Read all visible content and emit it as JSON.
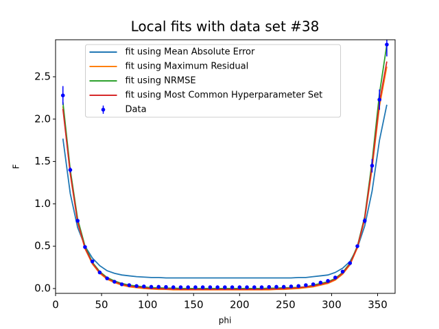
{
  "chart_data": {
    "type": "line",
    "title": "Local fits with data set #38",
    "x_label": "phi",
    "y_label": "F",
    "x": [
      8,
      16,
      24,
      32,
      40,
      48,
      56,
      64,
      72,
      80,
      88,
      96,
      104,
      112,
      120,
      128,
      136,
      144,
      152,
      160,
      168,
      176,
      184,
      192,
      200,
      208,
      216,
      224,
      232,
      240,
      248,
      256,
      264,
      272,
      280,
      288,
      296,
      304,
      312,
      320,
      328,
      336,
      344,
      352,
      360
    ],
    "series": [
      {
        "name": "fit using Mean Absolute Error",
        "color": "#1f77b4",
        "values": [
          1.77,
          1.12,
          0.72,
          0.5,
          0.36,
          0.27,
          0.21,
          0.18,
          0.16,
          0.15,
          0.14,
          0.135,
          0.13,
          0.13,
          0.125,
          0.125,
          0.125,
          0.125,
          0.125,
          0.125,
          0.125,
          0.125,
          0.125,
          0.125,
          0.125,
          0.125,
          0.125,
          0.125,
          0.125,
          0.125,
          0.125,
          0.125,
          0.13,
          0.13,
          0.14,
          0.15,
          0.16,
          0.19,
          0.24,
          0.32,
          0.48,
          0.74,
          1.15,
          1.75,
          2.17
        ]
      },
      {
        "name": "fit using Maximum Residual",
        "color": "#ff7f0e",
        "values": [
          2.15,
          1.35,
          0.78,
          0.47,
          0.29,
          0.18,
          0.11,
          0.07,
          0.04,
          0.02,
          0.01,
          0,
          -0.005,
          -0.01,
          -0.01,
          -0.015,
          -0.015,
          -0.015,
          -0.015,
          -0.015,
          -0.015,
          -0.015,
          -0.015,
          -0.015,
          -0.015,
          -0.015,
          -0.015,
          -0.015,
          -0.015,
          -0.01,
          -0.01,
          -0.005,
          0,
          0.01,
          0.02,
          0.04,
          0.06,
          0.1,
          0.17,
          0.28,
          0.48,
          0.82,
          1.42,
          2.15,
          2.62
        ]
      },
      {
        "name": "fit using NRMSE",
        "color": "#2ca02c",
        "values": [
          2.2,
          1.4,
          0.82,
          0.5,
          0.31,
          0.2,
          0.13,
          0.09,
          0.06,
          0.04,
          0.03,
          0.02,
          0.01,
          0.01,
          0.005,
          0.005,
          0,
          0,
          0,
          0,
          0,
          0,
          0,
          0,
          0,
          0,
          0,
          0,
          0.005,
          0.005,
          0.01,
          0.01,
          0.015,
          0.02,
          0.04,
          0.06,
          0.08,
          0.12,
          0.19,
          0.3,
          0.5,
          0.85,
          1.5,
          2.3,
          2.88
        ]
      },
      {
        "name": "fit using Most Common Hyperparameter Set",
        "color": "#d62728",
        "values": [
          2.12,
          1.36,
          0.79,
          0.48,
          0.3,
          0.19,
          0.12,
          0.08,
          0.05,
          0.03,
          0.02,
          0.01,
          0,
          0,
          -0.005,
          -0.005,
          -0.01,
          -0.01,
          -0.01,
          -0.01,
          -0.01,
          -0.01,
          -0.01,
          -0.01,
          -0.01,
          -0.01,
          -0.01,
          -0.01,
          -0.005,
          -0.005,
          0,
          0.005,
          0.01,
          0.02,
          0.03,
          0.05,
          0.07,
          0.11,
          0.18,
          0.29,
          0.49,
          0.83,
          1.45,
          2.2,
          2.68
        ]
      },
      {
        "name": "Data",
        "color": "#0000ff",
        "values": [
          2.28,
          1.4,
          0.8,
          0.49,
          0.32,
          0.19,
          0.12,
          0.08,
          0.05,
          0.04,
          0.03,
          0.025,
          0.02,
          0.02,
          0.018,
          0.015,
          0.015,
          0.015,
          0.015,
          0.015,
          0.015,
          0.015,
          0.015,
          0.015,
          0.015,
          0.015,
          0.015,
          0.015,
          0.018,
          0.02,
          0.02,
          0.025,
          0.03,
          0.04,
          0.05,
          0.07,
          0.09,
          0.13,
          0.2,
          0.3,
          0.5,
          0.8,
          1.45,
          2.23,
          2.88
        ],
        "errors": [
          0.11,
          0.03,
          0.01,
          0.01,
          0.01,
          0.01,
          0.01,
          0.01,
          0.01,
          0.01,
          0.01,
          0.01,
          0.01,
          0.01,
          0.01,
          0.01,
          0.01,
          0.01,
          0.01,
          0.01,
          0.01,
          0.01,
          0.01,
          0.01,
          0.01,
          0.01,
          0.01,
          0.01,
          0.01,
          0.01,
          0.01,
          0.01,
          0.01,
          0.01,
          0.01,
          0.01,
          0.01,
          0.01,
          0.01,
          0.01,
          0.02,
          0.03,
          0.08,
          0.12,
          0.14
        ]
      }
    ],
    "xlim": [
      0,
      369
    ],
    "ylim": [
      -0.057,
      2.937
    ],
    "xticks": [
      0,
      50,
      100,
      150,
      200,
      250,
      300,
      350
    ],
    "yticks": [
      {
        "value": 0,
        "label": "0.0"
      },
      0.5,
      {
        "value": 1,
        "label": "1.0"
      },
      1.5,
      {
        "value": 2,
        "label": "2.0"
      },
      2.5
    ],
    "legend": "upper center"
  }
}
